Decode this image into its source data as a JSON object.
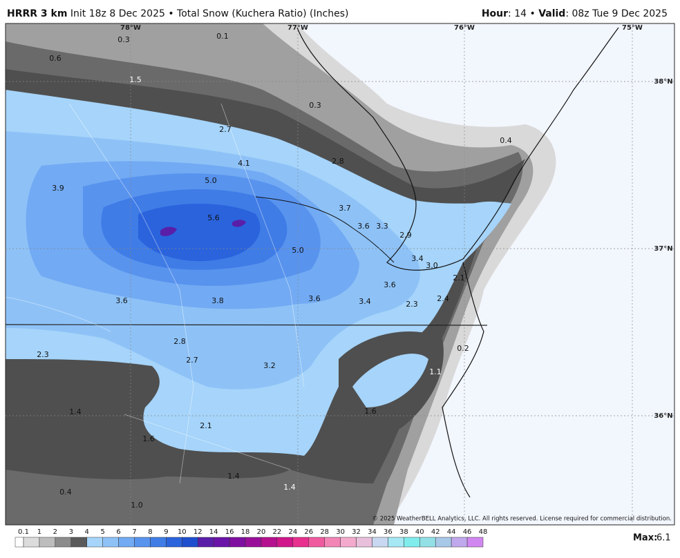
{
  "header": {
    "model": "HRRR 3 km",
    "description": "Init 18z 8 Dec 2025 • Total Snow (Kuchera Ratio) (Inches)",
    "right": [
      {
        "text": "Hour",
        "bold": true
      },
      {
        "text": ": 14 • ",
        "bold": false
      },
      {
        "text": "Valid",
        "bold": true
      },
      {
        "text": ": 08z Tue 9 Dec 2025",
        "bold": false
      }
    ]
  },
  "map": {
    "longitudes": [
      "78°W",
      "77°W",
      "76°W",
      "75°W"
    ],
    "latitudes": [
      "38°N",
      "37°N",
      "36°N"
    ],
    "snow_labels": [
      "0.3",
      "0.1",
      "0.6",
      "1.5",
      "0.3",
      "2.7",
      "0.4",
      "4.1",
      "2.8",
      "3.9",
      "5.0",
      "3.7",
      "5.6",
      "3.6",
      "3.3",
      "2.9",
      "5.0",
      "3.4",
      "3.0",
      "2.1",
      "3.6",
      "3.6",
      "3.8",
      "3.6",
      "3.4",
      "2.3",
      "2.4",
      "2.8",
      "0.2",
      "2.3",
      "2.7",
      "3.2",
      "1.1",
      "1.6",
      "1.4",
      "2.1",
      "1.6",
      "1.4",
      "0.4",
      "1.4",
      "1.0"
    ],
    "copyright": "© 2025 WeatherBELL Analytics, LLC. All rights reserved. License required for commercial distribution."
  },
  "legend": {
    "ticks": [
      "0.1",
      "1",
      "2",
      "3",
      "4",
      "5",
      "6",
      "7",
      "8",
      "9",
      "10",
      "12",
      "14",
      "16",
      "18",
      "20",
      "22",
      "24",
      "26",
      "28",
      "30",
      "32",
      "34",
      "36",
      "38",
      "40",
      "42",
      "44",
      "46",
      "48"
    ],
    "colors": [
      "#ffffff",
      "#dcdcdc",
      "#bdbdbd",
      "#8c8c8c",
      "#5a5a5a",
      "#a6d4fa",
      "#8ec2f7",
      "#72aaf3",
      "#5893ee",
      "#3f7ce6",
      "#2a63dc",
      "#1e4fcf",
      "#5a1fa8",
      "#6a14a8",
      "#7e0fa0",
      "#9a0f9a",
      "#b5108e",
      "#d0168a",
      "#e8308e",
      "#f05a9e",
      "#f285b6",
      "#f3aacc",
      "#e8c0dc",
      "#c8d8f0",
      "#a6e8f4",
      "#80ecec",
      "#92e0e6",
      "#a8c8e8",
      "#c0a8ec",
      "#d088f0"
    ]
  },
  "max": {
    "label": "Max:",
    "value": "6.1"
  }
}
